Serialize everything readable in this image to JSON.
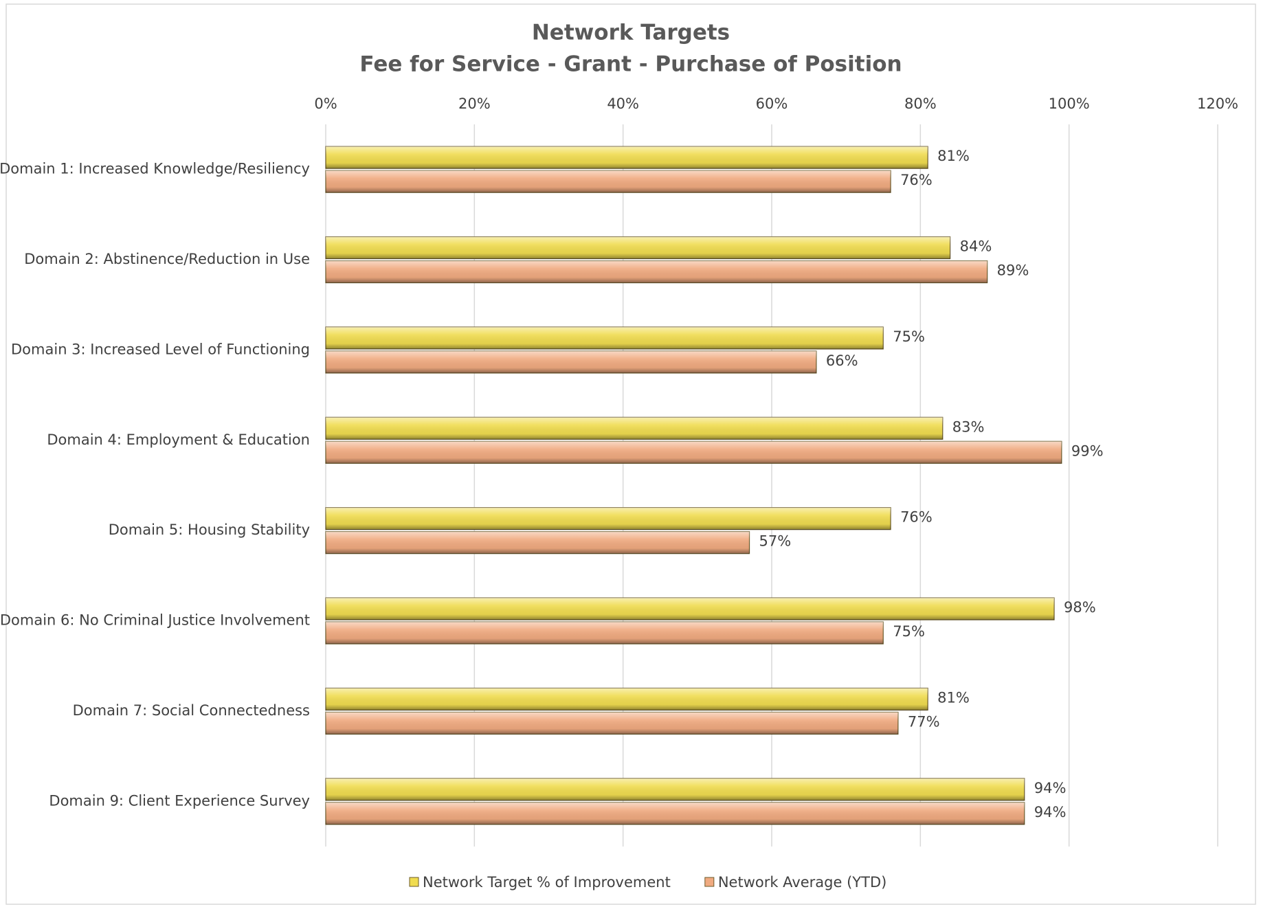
{
  "chart_data": {
    "type": "bar",
    "orientation": "horizontal",
    "title": "Network Targets",
    "subtitle": "Fee for Service - Grant - Purchase of Position",
    "categories": [
      "Domain 1: Increased Knowledge/Resiliency",
      "Domain 2: Abstinence/Reduction in Use",
      "Domain 3: Increased Level of Functioning",
      "Domain 4: Employment & Education",
      "Domain 5: Housing Stability",
      "Domain 6: No Criminal Justice Involvement",
      "Domain 7: Social Connectedness",
      "Domain 9: Client Experience Survey"
    ],
    "series": [
      {
        "name": "Network Target % of Improvement",
        "color": "#f0dc50",
        "values": [
          81,
          84,
          75,
          83,
          76,
          98,
          81,
          94
        ],
        "value_labels": [
          "81%",
          "84%",
          "75%",
          "83%",
          "76%",
          "98%",
          "81%",
          "94%"
        ]
      },
      {
        "name": "Network Average (YTD)",
        "color": "#f0aa80",
        "values": [
          76,
          89,
          66,
          99,
          57,
          75,
          77,
          94
        ],
        "value_labels": [
          "76%",
          "89%",
          "66%",
          "99%",
          "57%",
          "75%",
          "77%",
          "94%"
        ]
      }
    ],
    "xlim": [
      0,
      120
    ],
    "xticks": [
      {
        "value": 0,
        "label": "0%"
      },
      {
        "value": 20,
        "label": "20%"
      },
      {
        "value": 40,
        "label": "40%"
      },
      {
        "value": 60,
        "label": "60%"
      },
      {
        "value": 80,
        "label": "80%"
      },
      {
        "value": 100,
        "label": "100%"
      },
      {
        "value": 120,
        "label": "120%"
      }
    ],
    "grid": true,
    "legend": "bottom"
  }
}
